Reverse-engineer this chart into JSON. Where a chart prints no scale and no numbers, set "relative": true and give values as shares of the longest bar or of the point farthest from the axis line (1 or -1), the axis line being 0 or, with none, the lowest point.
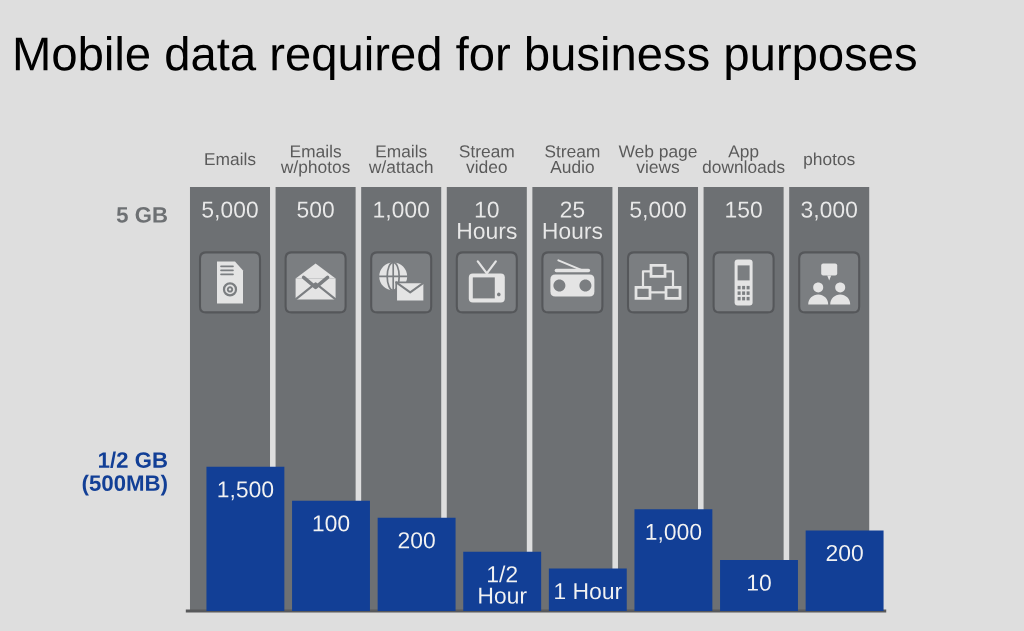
{
  "chart_data": {
    "type": "bar",
    "title": "Mobile data required for business purposes",
    "relative": true,
    "categories": [
      "Emails",
      "Emails\nw/photos",
      "Emails\nw/attach",
      "Stream\nvideo",
      "Stream\nAudio",
      "Web page\nviews",
      "App\ndownloads",
      "photos"
    ],
    "series": [
      {
        "name": "5 GB",
        "color": "#6d7073",
        "values": [
          1,
          1,
          1,
          1,
          1,
          1,
          1,
          1
        ]
      },
      {
        "name": "1/2 GB\n(500MB)",
        "color": "#123f96",
        "values": [
          0.34,
          0.26,
          0.22,
          0.14,
          0.1,
          0.24,
          0.12,
          0.19
        ]
      }
    ],
    "annotations": [
      {
        "text": "5,000",
        "x": "Emails",
        "y": 1
      },
      {
        "text": "500",
        "x": "Emails\nw/photos",
        "y": 1
      },
      {
        "text": "1,000",
        "x": "Emails\nw/attach",
        "y": 1
      },
      {
        "text": "10\nHours",
        "x": "Stream\nvideo",
        "y": 1
      },
      {
        "text": "25\nHours",
        "x": "Stream\nAudio",
        "y": 1
      },
      {
        "text": "5,000",
        "x": "Web page\nviews",
        "y": 1
      },
      {
        "text": "150",
        "x": "App\ndownloads",
        "y": 1
      },
      {
        "text": "3,000",
        "x": "photos",
        "y": 1
      },
      {
        "text": "1,500",
        "x": "Emails",
        "y": 0.34
      },
      {
        "text": "100",
        "x": "Emails\nw/photos",
        "y": 0.26
      },
      {
        "text": "200",
        "x": "Emails\nw/attach",
        "y": 0.22
      },
      {
        "text": "1/2\nHour",
        "x": "Stream\nvideo",
        "y": 0.14
      },
      {
        "text": "1 Hour",
        "x": "Stream\nAudio",
        "y": 0.1
      },
      {
        "text": "1,000",
        "x": "Web page\nviews",
        "y": 0.24
      },
      {
        "text": "10",
        "x": "App\ndownloads",
        "y": 0.12
      },
      {
        "text": "200",
        "x": "photos",
        "y": 0.19
      }
    ]
  }
}
